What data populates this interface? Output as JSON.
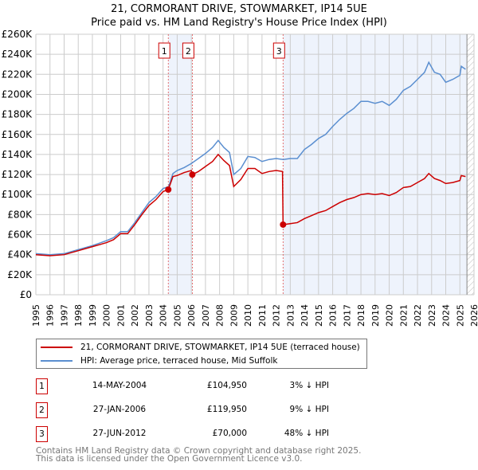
{
  "chart_data": {
    "type": "line",
    "title": "21, CORMORANT DRIVE, STOWMARKET, IP14 5UE",
    "subtitle": "Price paid vs. HM Land Registry's House Price Index (HPI)",
    "xlim": [
      1995,
      2026
    ],
    "ylim": [
      0,
      260000
    ],
    "x_ticks": [
      "1995",
      "1996",
      "1997",
      "1998",
      "1999",
      "2000",
      "2001",
      "2002",
      "2003",
      "2004",
      "2005",
      "2006",
      "2007",
      "2008",
      "2009",
      "2010",
      "2011",
      "2012",
      "2013",
      "2014",
      "2015",
      "2016",
      "2017",
      "2018",
      "2019",
      "2020",
      "2021",
      "2022",
      "2023",
      "2024",
      "2025",
      "2026"
    ],
    "y_ticks": [
      "£0",
      "£20K",
      "£40K",
      "£60K",
      "£80K",
      "£100K",
      "£120K",
      "£140K",
      "£160K",
      "£180K",
      "£200K",
      "£220K",
      "£240K",
      "£260K"
    ],
    "grid": true,
    "series": [
      {
        "name": "21, CORMORANT DRIVE, STOWMARKET, IP14 5UE (terraced house)",
        "color": "#cc0000",
        "x": [
          1995,
          1996,
          1997,
          1998,
          1999,
          2000,
          2000.5,
          2001,
          2001.5,
          2002,
          2002.5,
          2003,
          2003.5,
          2004,
          2004.37,
          2004.7,
          2005,
          2005.5,
          2006,
          2006.07,
          2006.5,
          2007,
          2007.5,
          2007.9,
          2008.3,
          2008.7,
          2009,
          2009.5,
          2010,
          2010.5,
          2011,
          2011.5,
          2012,
          2012.45,
          2012.49,
          2013,
          2013.5,
          2014,
          2014.5,
          2015,
          2015.5,
          2016,
          2016.5,
          2017,
          2017.5,
          2018,
          2018.5,
          2019,
          2019.5,
          2020,
          2020.5,
          2021,
          2021.5,
          2022,
          2022.5,
          2022.8,
          2023.2,
          2023.6,
          2024,
          2024.5,
          2025,
          2025.1,
          2025.4
        ],
        "y": [
          40,
          39,
          40,
          44,
          48,
          52,
          55,
          61,
          61,
          70,
          80,
          89,
          95,
          103,
          104.95,
          118,
          119,
          122,
          124,
          119.95,
          123,
          128,
          133,
          140,
          134,
          129,
          108,
          115,
          126,
          126,
          121,
          123,
          124,
          123,
          70,
          71,
          72,
          76,
          79,
          82,
          84,
          88,
          92,
          95,
          97,
          100,
          101,
          100,
          101,
          99,
          102,
          107,
          108,
          112,
          116,
          121,
          116,
          114,
          111,
          112,
          114,
          119,
          118
        ]
      },
      {
        "name": "HPI: Average price, terraced house, Mid Suffolk",
        "color": "#5b8fd0",
        "x": [
          1995,
          1996,
          1997,
          1998,
          1999,
          2000,
          2000.5,
          2001,
          2001.5,
          2002,
          2002.5,
          2003,
          2003.5,
          2004,
          2004.4,
          2004.7,
          2005,
          2005.5,
          2006,
          2006.5,
          2007,
          2007.5,
          2007.9,
          2008.3,
          2008.7,
          2009,
          2009.5,
          2010,
          2010.5,
          2011,
          2011.5,
          2012,
          2012.5,
          2013,
          2013.5,
          2014,
          2014.5,
          2015,
          2015.5,
          2016,
          2016.5,
          2017,
          2017.5,
          2018,
          2018.5,
          2019,
          2019.5,
          2020,
          2020.5,
          2021,
          2021.5,
          2022,
          2022.5,
          2022.8,
          2023.2,
          2023.6,
          2024,
          2024.5,
          2025,
          2025.1,
          2025.4
        ],
        "y": [
          41,
          40,
          41,
          45,
          49,
          54,
          57,
          63,
          63,
          72,
          82,
          92,
          98,
          106,
          108,
          121,
          124,
          127,
          131,
          136,
          141,
          147,
          154,
          147,
          142,
          120,
          126,
          138,
          137,
          133,
          135,
          136,
          135,
          136,
          136,
          145,
          150,
          156,
          160,
          168,
          175,
          181,
          186,
          193,
          193,
          191,
          193,
          189,
          195,
          204,
          208,
          215,
          222,
          232,
          222,
          220,
          212,
          215,
          219,
          228,
          225
        ]
      }
    ],
    "y_unit": "thousand GBP",
    "sales": [
      {
        "label": "1",
        "x": 2004.37,
        "y": 104.95,
        "date": "14-MAY-2004",
        "price": "£104,950",
        "hpi": "3% ↓ HPI"
      },
      {
        "label": "2",
        "x": 2006.07,
        "y": 119.95,
        "date": "27-JAN-2006",
        "price": "£119,950",
        "hpi": "9% ↓ HPI"
      },
      {
        "label": "3",
        "x": 2012.49,
        "y": 70,
        "date": "27-JUN-2012",
        "price": "£70,000",
        "hpi": "48% ↓ HPI"
      }
    ],
    "shaded": [
      [
        2004.37,
        2006.07
      ],
      [
        2012.49,
        2025.5
      ]
    ],
    "forecast_start": 2025.5
  },
  "footer": [
    "Contains HM Land Registry data © Crown copyright and database right 2025.",
    "This data is licensed under the Open Government Licence v3.0."
  ]
}
